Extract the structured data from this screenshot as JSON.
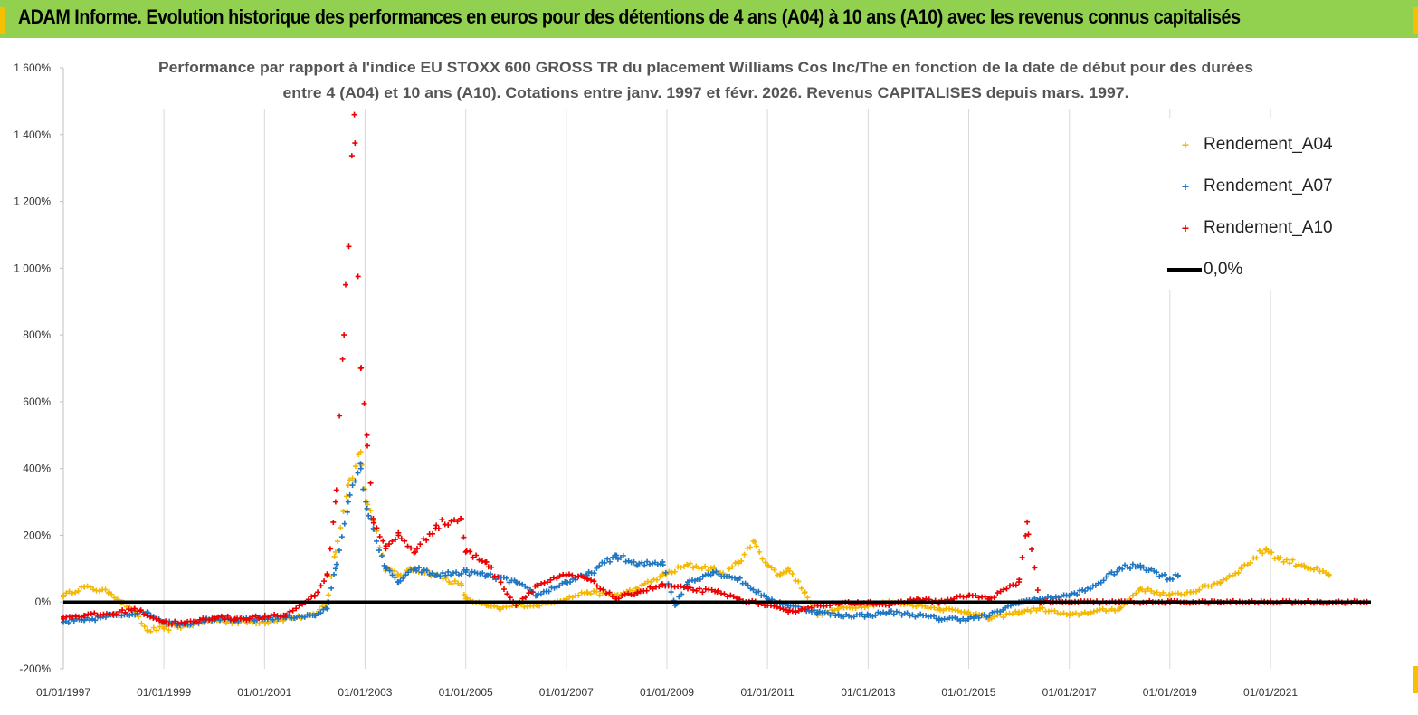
{
  "header": {
    "title": "ADAM Informe. Evolution historique des performances en euros pour des détentions de 4 ans (A04) à 10 ans (A10) avec les revenus connus capitalisés"
  },
  "colors": {
    "banner": "#92d050",
    "corner": "#f5c000",
    "A04": "#f5b800",
    "A07": "#1f77c4",
    "A10": "#ee0000",
    "zero": "#000000"
  },
  "chart_data": {
    "type": "scatter",
    "title_line1": "Performance par rapport à l'indice EU STOXX 600 GROSS TR  du placement Williams Cos Inc/The en fonction de la date de début pour des durées",
    "title_line2": "entre 4 (A04) et 10 ans (A10). Cotations entre janv. 1997 et févr. 2026. Revenus CAPITALISES depuis mars. 1997.",
    "xlabel": "",
    "ylabel": "",
    "x_range": [
      "1997-01-01",
      "2022-12-31"
    ],
    "ylim": [
      -200,
      1600
    ],
    "y_ticks": [
      -200,
      0,
      200,
      400,
      600,
      800,
      1000,
      1200,
      1400,
      1600
    ],
    "y_tick_labels": [
      "-200%",
      "0%",
      "200%",
      "400%",
      "600%",
      "800%",
      "1 000%",
      "1 200%",
      "1 400%",
      "1 600%"
    ],
    "x_ticks": [
      "01/01/1997",
      "01/01/1999",
      "01/01/2001",
      "01/01/2003",
      "01/01/2005",
      "01/01/2007",
      "01/01/2009",
      "01/01/2011",
      "01/01/2013",
      "01/01/2015",
      "01/01/2017",
      "01/01/2019",
      "01/01/2021"
    ],
    "grid": "vertical",
    "legend_position": "top-right",
    "series": [
      {
        "name": "Rendement_A04",
        "marker": "+",
        "points": [
          [
            "1997-01-01",
            20
          ],
          [
            "1997-06-01",
            45
          ],
          [
            "1997-12-01",
            30
          ],
          [
            "1998-03-01",
            0
          ],
          [
            "1998-06-01",
            -30
          ],
          [
            "1998-09-01",
            -85
          ],
          [
            "1999-01-01",
            -80
          ],
          [
            "1999-06-01",
            -70
          ],
          [
            "2000-01-01",
            -55
          ],
          [
            "2000-06-01",
            -60
          ],
          [
            "2001-01-01",
            -60
          ],
          [
            "2001-06-01",
            -50
          ],
          [
            "2002-01-01",
            -40
          ],
          [
            "2002-04-01",
            0
          ],
          [
            "2002-06-01",
            150
          ],
          [
            "2002-09-01",
            350
          ],
          [
            "2002-12-01",
            450
          ],
          [
            "2003-01-15",
            300
          ],
          [
            "2003-03-01",
            250
          ],
          [
            "2003-06-01",
            100
          ],
          [
            "2003-09-01",
            80
          ],
          [
            "2004-01-01",
            100
          ],
          [
            "2004-06-01",
            80
          ],
          [
            "2004-12-01",
            50
          ],
          [
            "2005-01-01",
            10
          ],
          [
            "2005-06-01",
            -10
          ],
          [
            "2005-09-01",
            -20
          ],
          [
            "2006-01-01",
            -10
          ],
          [
            "2006-06-01",
            -10
          ],
          [
            "2007-01-01",
            10
          ],
          [
            "2007-06-01",
            30
          ],
          [
            "2008-01-01",
            20
          ],
          [
            "2008-06-01",
            40
          ],
          [
            "2008-12-01",
            80
          ],
          [
            "2009-06-01",
            110
          ],
          [
            "2009-12-01",
            100
          ],
          [
            "2010-03-01",
            80
          ],
          [
            "2010-06-01",
            120
          ],
          [
            "2010-10-01",
            180
          ],
          [
            "2011-01-01",
            110
          ],
          [
            "2011-04-01",
            80
          ],
          [
            "2011-06-01",
            100
          ],
          [
            "2011-10-01",
            30
          ],
          [
            "2012-01-01",
            -40
          ],
          [
            "2012-06-01",
            -20
          ],
          [
            "2013-01-01",
            -10
          ],
          [
            "2013-06-01",
            0
          ],
          [
            "2014-01-01",
            -10
          ],
          [
            "2014-06-01",
            -20
          ],
          [
            "2015-01-01",
            -30
          ],
          [
            "2015-06-01",
            -50
          ],
          [
            "2016-01-01",
            -30
          ],
          [
            "2016-06-01",
            -20
          ],
          [
            "2017-01-01",
            -40
          ],
          [
            "2017-06-01",
            -30
          ],
          [
            "2018-01-01",
            -20
          ],
          [
            "2018-06-01",
            40
          ],
          [
            "2019-01-01",
            20
          ],
          [
            "2019-06-01",
            30
          ],
          [
            "2020-01-01",
            60
          ],
          [
            "2020-06-01",
            100
          ],
          [
            "2020-12-01",
            160
          ],
          [
            "2021-03-01",
            130
          ],
          [
            "2021-09-01",
            110
          ],
          [
            "2022-03-01",
            80
          ]
        ]
      },
      {
        "name": "Rendement_A07",
        "marker": "+",
        "points": [
          [
            "1997-01-01",
            -60
          ],
          [
            "1997-06-01",
            -55
          ],
          [
            "1998-01-01",
            -40
          ],
          [
            "1998-09-01",
            -30
          ],
          [
            "1999-01-01",
            -60
          ],
          [
            "1999-06-01",
            -65
          ],
          [
            "2000-01-01",
            -50
          ],
          [
            "2000-06-01",
            -55
          ],
          [
            "2001-01-01",
            -50
          ],
          [
            "2001-06-01",
            -45
          ],
          [
            "2002-01-01",
            -40
          ],
          [
            "2002-04-01",
            -20
          ],
          [
            "2002-06-01",
            100
          ],
          [
            "2002-09-01",
            300
          ],
          [
            "2002-12-01",
            400
          ],
          [
            "2003-01-15",
            280
          ],
          [
            "2003-03-01",
            220
          ],
          [
            "2003-06-01",
            100
          ],
          [
            "2003-09-01",
            60
          ],
          [
            "2004-01-01",
            100
          ],
          [
            "2004-06-01",
            80
          ],
          [
            "2005-01-01",
            90
          ],
          [
            "2005-06-01",
            80
          ],
          [
            "2006-01-01",
            60
          ],
          [
            "2006-06-01",
            20
          ],
          [
            "2007-01-01",
            60
          ],
          [
            "2007-06-01",
            80
          ],
          [
            "2008-01-01",
            140
          ],
          [
            "2008-06-01",
            110
          ],
          [
            "2008-12-01",
            120
          ],
          [
            "2009-03-01",
            -10
          ],
          [
            "2009-06-01",
            60
          ],
          [
            "2009-12-01",
            90
          ],
          [
            "2010-06-01",
            70
          ],
          [
            "2011-01-01",
            10
          ],
          [
            "2011-06-01",
            -10
          ],
          [
            "2012-01-01",
            -30
          ],
          [
            "2012-06-01",
            -40
          ],
          [
            "2013-01-01",
            -40
          ],
          [
            "2013-06-01",
            -30
          ],
          [
            "2014-01-01",
            -40
          ],
          [
            "2014-06-01",
            -50
          ],
          [
            "2015-01-01",
            -50
          ],
          [
            "2015-06-01",
            -40
          ],
          [
            "2016-01-01",
            0
          ],
          [
            "2016-06-01",
            10
          ],
          [
            "2017-01-01",
            20
          ],
          [
            "2017-06-01",
            40
          ],
          [
            "2018-01-01",
            100
          ],
          [
            "2018-06-01",
            110
          ],
          [
            "2019-01-01",
            70
          ],
          [
            "2019-03-01",
            80
          ]
        ]
      },
      {
        "name": "Rendement_A10",
        "marker": "+",
        "points": [
          [
            "1997-01-01",
            -45
          ],
          [
            "1997-06-01",
            -40
          ],
          [
            "1998-01-01",
            -35
          ],
          [
            "1998-06-01",
            -20
          ],
          [
            "1999-01-01",
            -60
          ],
          [
            "1999-06-01",
            -65
          ],
          [
            "2000-01-01",
            -45
          ],
          [
            "2000-06-01",
            -50
          ],
          [
            "2001-01-01",
            -45
          ],
          [
            "2001-06-01",
            -40
          ],
          [
            "2002-01-01",
            20
          ],
          [
            "2002-04-01",
            80
          ],
          [
            "2002-06-01",
            300
          ],
          [
            "2002-08-01",
            800
          ],
          [
            "2002-10-15",
            1460
          ],
          [
            "2002-12-01",
            700
          ],
          [
            "2003-01-15",
            500
          ],
          [
            "2003-03-01",
            250
          ],
          [
            "2003-06-01",
            160
          ],
          [
            "2003-09-01",
            200
          ],
          [
            "2004-01-01",
            150
          ],
          [
            "2004-06-01",
            230
          ],
          [
            "2004-12-01",
            250
          ],
          [
            "2005-01-01",
            150
          ],
          [
            "2005-06-01",
            120
          ],
          [
            "2006-01-01",
            -10
          ],
          [
            "2006-06-01",
            50
          ],
          [
            "2007-01-01",
            80
          ],
          [
            "2007-06-01",
            70
          ],
          [
            "2008-01-01",
            10
          ],
          [
            "2008-06-01",
            30
          ],
          [
            "2008-12-01",
            50
          ],
          [
            "2009-06-01",
            40
          ],
          [
            "2010-01-01",
            30
          ],
          [
            "2010-06-01",
            10
          ],
          [
            "2011-01-01",
            -10
          ],
          [
            "2011-06-01",
            -30
          ],
          [
            "2012-01-01",
            -10
          ],
          [
            "2012-06-01",
            -5
          ],
          [
            "2013-01-01",
            0
          ],
          [
            "2013-06-01",
            -10
          ],
          [
            "2014-01-01",
            10
          ],
          [
            "2014-06-01",
            0
          ],
          [
            "2015-01-01",
            20
          ],
          [
            "2015-06-01",
            10
          ],
          [
            "2016-01-01",
            60
          ],
          [
            "2016-03-01",
            240
          ],
          [
            "2016-06-01",
            0
          ],
          [
            "2017-01-01",
            0
          ],
          [
            "2018-01-01",
            0
          ],
          [
            "2019-01-01",
            0
          ],
          [
            "2020-01-01",
            0
          ],
          [
            "2021-01-01",
            0
          ],
          [
            "2022-01-01",
            0
          ],
          [
            "2022-12-01",
            0
          ]
        ]
      },
      {
        "name": "0,0%",
        "marker": "line",
        "points": [
          [
            "1997-01-01",
            0
          ],
          [
            "2022-12-31",
            0
          ]
        ]
      }
    ]
  }
}
